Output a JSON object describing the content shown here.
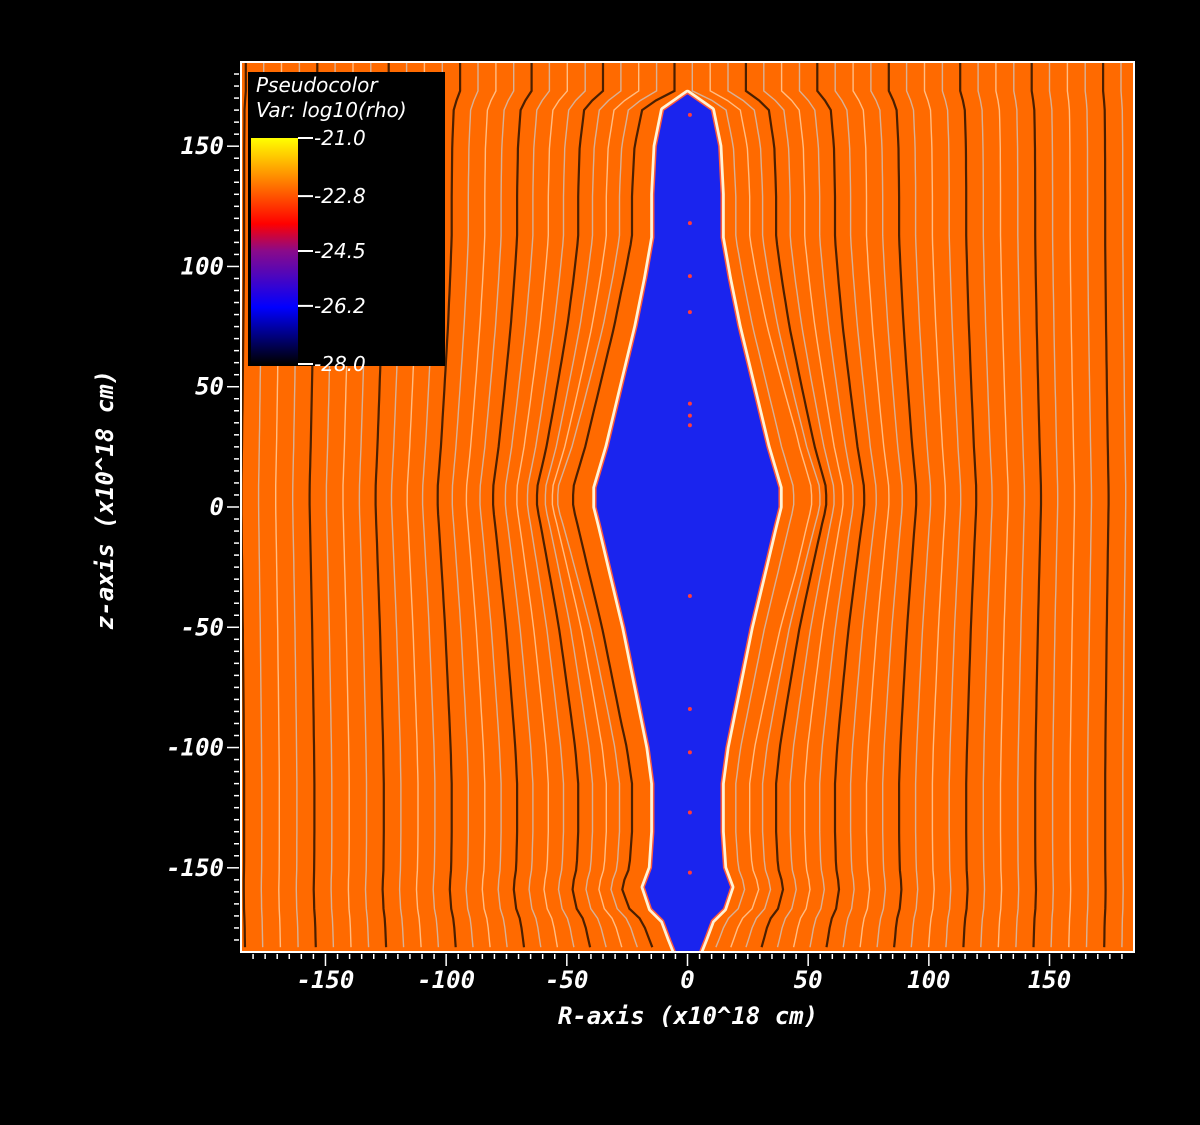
{
  "chart_data": {
    "type": "heatmap",
    "plot_kind": "pseudocolor",
    "variable_label": "Var: log10(rho)",
    "legend_title": "Pseudocolor",
    "xlabel": "R-axis (x10^18 cm)",
    "ylabel": "z-axis (x10^18 cm)",
    "xlim": [
      -185,
      185
    ],
    "ylim": [
      -185,
      185
    ],
    "x_ticks": [
      -150,
      -100,
      -50,
      0,
      50,
      100,
      150
    ],
    "y_ticks": [
      150,
      100,
      50,
      0,
      -50,
      -100,
      -150
    ],
    "x_tick_labels": [
      "-150",
      "-100",
      "-50",
      "0",
      "50",
      "100",
      "150"
    ],
    "y_tick_labels": [
      "150",
      "100",
      "50",
      "0",
      "-50",
      "-100",
      "-150"
    ],
    "colorbar": {
      "min": -28.0,
      "max": -21.0,
      "ticks": [
        -21.0,
        -22.8,
        -24.5,
        -26.2,
        -28.0
      ],
      "tick_labels": [
        "-21.0",
        "-22.8",
        "-24.5",
        "-26.2",
        "-28.0"
      ],
      "colormap": [
        "#000000",
        "#0000ff",
        "#ff0000",
        "#ffa500",
        "#ffff00"
      ]
    },
    "background_value": -22.3,
    "cavity_value": -26.0,
    "cavity_outline": {
      "z": [
        172,
        165,
        150,
        130,
        112,
        95,
        75,
        50,
        25,
        8,
        0,
        -8,
        -25,
        -50,
        -75,
        -100,
        -115,
        -135,
        -150,
        -158,
        -167,
        -172,
        -180,
        -185
      ],
      "half_width_R": [
        0,
        10,
        13,
        14,
        14,
        17,
        21,
        27,
        33,
        38,
        38,
        36,
        32,
        26,
        21,
        16,
        14,
        14,
        15,
        18,
        15,
        10,
        7,
        5
      ]
    },
    "field_lines": "vertical stripes across the domain, bending outward around the low-density cavity",
    "grid": false,
    "legend_position": "top-left"
  },
  "colors": {
    "figure_background": "#000000",
    "ambient_medium": "#ff6a00",
    "cavity": "#1a24ee",
    "cavity_edge": "#fff4d6",
    "frame": "#ffffff"
  }
}
